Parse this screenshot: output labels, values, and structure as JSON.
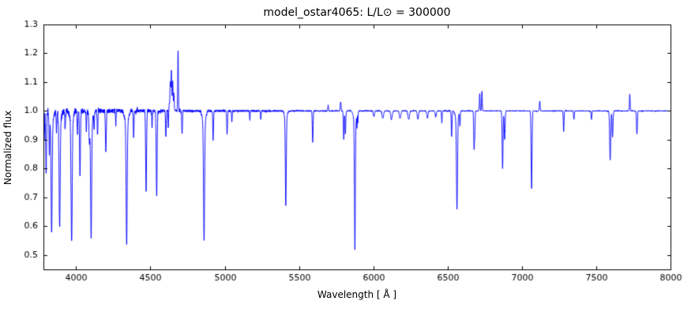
{
  "figure": {
    "background": "#ffffff",
    "line_color": "#0000ff",
    "axis_color": "#000000"
  },
  "chart_data": {
    "type": "line",
    "title": "model_ostar4065: L/L⊙ = 300000",
    "xlabel": "Wavelength [ Å ]",
    "ylabel": "Normalized flux",
    "xlim": [
      3780,
      8000
    ],
    "ylim": [
      0.45,
      1.3
    ],
    "xticks": [
      4000,
      4500,
      5000,
      5500,
      6000,
      6500,
      7000,
      7500,
      8000
    ],
    "yticks": [
      0.5,
      0.6,
      0.7,
      0.8,
      0.9,
      1.0,
      1.1,
      1.2,
      1.3
    ],
    "continuum": 1.0,
    "legend": "none",
    "grid": false,
    "noise": {
      "base": 0.0016,
      "blue": 0.011,
      "scale": 700
    },
    "lines": [
      [
        3785,
        -0.1,
        2.5
      ],
      [
        3798,
        -0.22,
        3
      ],
      [
        3820,
        -0.14,
        2.5
      ],
      [
        3835,
        -0.38,
        3.5
      ],
      [
        3835,
        -0.05,
        10
      ],
      [
        3868,
        -0.07,
        2
      ],
      [
        3889,
        -0.36,
        3.5
      ],
      [
        3889,
        -0.05,
        10
      ],
      [
        3926,
        -0.07,
        2.5
      ],
      [
        3965,
        -0.06,
        2
      ],
      [
        3970,
        -0.4,
        3.5
      ],
      [
        3970,
        -0.05,
        10
      ],
      [
        4009,
        -0.08,
        2.5
      ],
      [
        4026,
        -0.23,
        3
      ],
      [
        4069,
        -0.07,
        2
      ],
      [
        4089,
        -0.09,
        2.5
      ],
      [
        4101,
        -0.4,
        3.5
      ],
      [
        4101,
        -0.05,
        11
      ],
      [
        4121,
        -0.06,
        2
      ],
      [
        4144,
        -0.08,
        2.5
      ],
      [
        4200,
        -0.14,
        3
      ],
      [
        4267,
        -0.05,
        2
      ],
      [
        4340,
        -0.42,
        3.5
      ],
      [
        4340,
        -0.05,
        11
      ],
      [
        4387,
        -0.09,
        2.5
      ],
      [
        4471,
        -0.28,
        3
      ],
      [
        4511,
        -0.06,
        2
      ],
      [
        4542,
        -0.3,
        3
      ],
      [
        4604,
        -0.09,
        2.5
      ],
      [
        4620,
        -0.07,
        2
      ],
      [
        4640,
        0.04,
        12
      ],
      [
        4634,
        0.07,
        2.2
      ],
      [
        4641,
        0.1,
        2.2
      ],
      [
        4650,
        0.08,
        2
      ],
      [
        4658,
        0.05,
        2
      ],
      [
        4686,
        0.21,
        2.3
      ],
      [
        4713,
        -0.08,
        2.5
      ],
      [
        4861,
        -0.4,
        3.5
      ],
      [
        4861,
        -0.05,
        10
      ],
      [
        4922,
        -0.1,
        2.5
      ],
      [
        5016,
        -0.08,
        2.5
      ],
      [
        5048,
        -0.04,
        2
      ],
      [
        5169,
        -0.03,
        2
      ],
      [
        5243,
        -0.03,
        2
      ],
      [
        5411,
        -0.3,
        3
      ],
      [
        5411,
        -0.03,
        8
      ],
      [
        5592,
        -0.11,
        2.5
      ],
      [
        5696,
        0.02,
        2.5
      ],
      [
        5780,
        0.03,
        3
      ],
      [
        5801,
        -0.1,
        2.5
      ],
      [
        5812,
        -0.08,
        2.5
      ],
      [
        5876,
        -0.44,
        3
      ],
      [
        5876,
        -0.04,
        9
      ],
      [
        5890,
        -0.05,
        1.5
      ],
      [
        5896,
        -0.04,
        1.5
      ],
      [
        6004,
        -0.02,
        4
      ],
      [
        6064,
        -0.025,
        5
      ],
      [
        6122,
        -0.03,
        5
      ],
      [
        6180,
        -0.025,
        5
      ],
      [
        6238,
        -0.03,
        5
      ],
      [
        6300,
        -0.03,
        4
      ],
      [
        6364,
        -0.025,
        4
      ],
      [
        6420,
        -0.02,
        4
      ],
      [
        6461,
        -0.04,
        2
      ],
      [
        6527,
        -0.09,
        2.5
      ],
      [
        6563,
        -0.31,
        3.5
      ],
      [
        6563,
        -0.03,
        10
      ],
      [
        6583,
        -0.05,
        2
      ],
      [
        6678,
        -0.13,
        2.5
      ],
      [
        6683,
        -0.07,
        2
      ],
      [
        6716,
        0.06,
        2.3
      ],
      [
        6731,
        0.07,
        2.3
      ],
      [
        6870,
        -0.2,
        3
      ],
      [
        6884,
        -0.1,
        3
      ],
      [
        7065,
        -0.27,
        3
      ],
      [
        7120,
        0.035,
        2.5
      ],
      [
        7281,
        -0.07,
        2.5
      ],
      [
        7350,
        -0.03,
        2.5
      ],
      [
        7468,
        -0.03,
        2.5
      ],
      [
        7594,
        -0.17,
        3.5
      ],
      [
        7610,
        -0.09,
        3
      ],
      [
        7726,
        0.06,
        2.3
      ],
      [
        7774,
        -0.08,
        3
      ]
    ]
  }
}
